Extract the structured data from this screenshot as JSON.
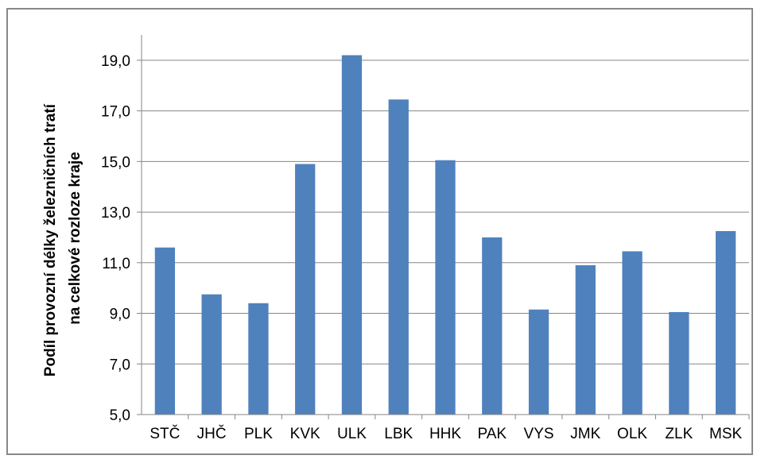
{
  "chart_data": {
    "type": "bar",
    "title": "",
    "xlabel": "",
    "ylabel_lines": [
      "Podíl provozní délky železničních tratí",
      "na celkové rozloze kraje"
    ],
    "categories": [
      "STČ",
      "JHČ",
      "PLK",
      "KVK",
      "ULK",
      "LBK",
      "HHK",
      "PAK",
      "VYS",
      "JMK",
      "OLK",
      "ZLK",
      "MSK"
    ],
    "values": [
      11.6,
      9.75,
      9.4,
      14.9,
      19.2,
      17.45,
      15.05,
      12.0,
      9.15,
      10.9,
      11.45,
      9.05,
      12.25
    ],
    "ylim": [
      5.0,
      20.0
    ],
    "yticks": [
      "5,0",
      "7,0",
      "9,0",
      "11,0",
      "13,0",
      "15,0",
      "17,0",
      "19,0"
    ],
    "grid": true,
    "bar_color": "#4F81BD",
    "grid_color": "#868686"
  }
}
